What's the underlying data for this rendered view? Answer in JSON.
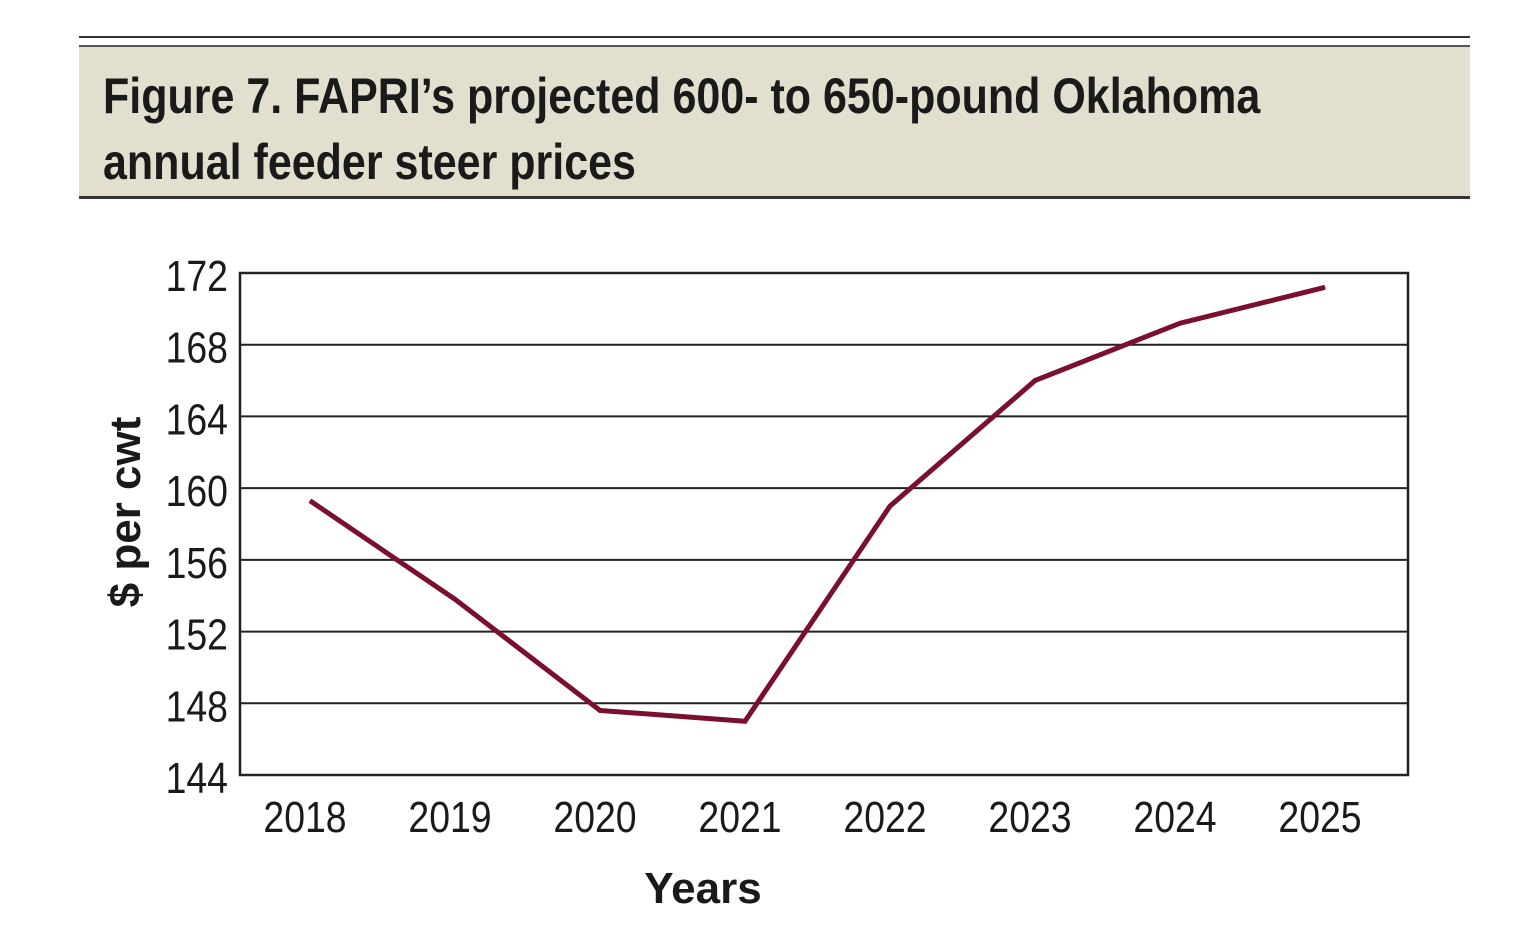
{
  "title_line1": "Figure 7. FAPRI’s projected 600- to 650-pound Oklahoma",
  "title_line2": "annual feeder steer prices",
  "chart_data": {
    "type": "line",
    "title": "Figure 7. FAPRI’s projected 600- to 650-pound Oklahoma annual feeder steer prices",
    "xlabel": "Years",
    "ylabel": "$ per cwt",
    "categories": [
      "2018",
      "2019",
      "2020",
      "2021",
      "2022",
      "2023",
      "2024",
      "2025"
    ],
    "values": [
      159.3,
      153.8,
      147.6,
      147.0,
      159.0,
      166.0,
      169.2,
      171.2
    ],
    "ylim": [
      144,
      172
    ],
    "yticks": [
      144,
      148,
      152,
      156,
      160,
      164,
      168,
      172
    ],
    "grid": true,
    "line_color": "#7a0f2e",
    "title_background": "#e2dfcf"
  }
}
